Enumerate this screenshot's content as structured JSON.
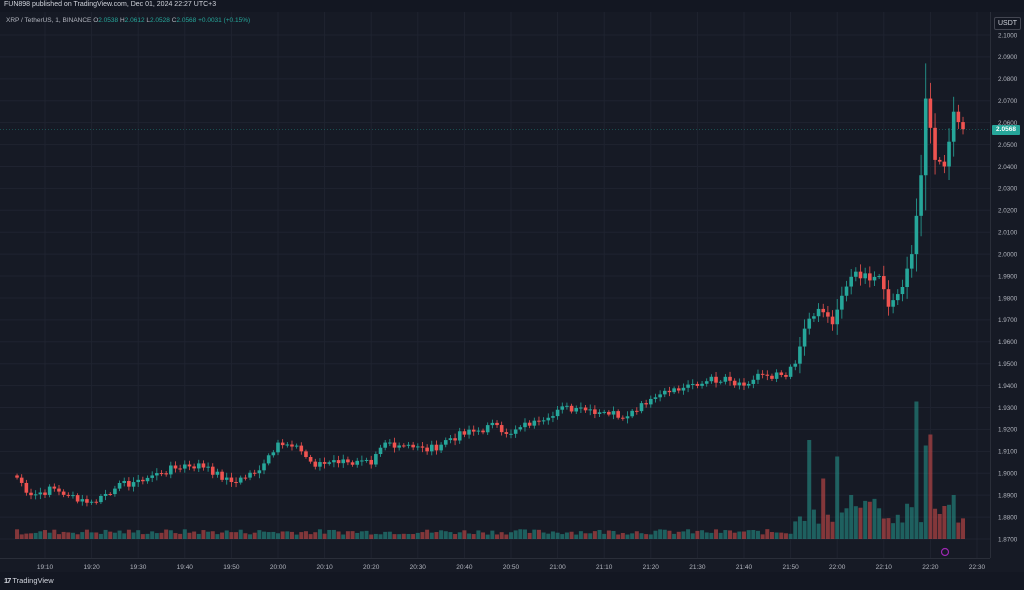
{
  "header": {
    "published": "FUN898 published on TradingView.com, Dec 01, 2024 22:27 UTC+3"
  },
  "legend": {
    "symbol": "XRP / TetherUS, 1, BINANCE",
    "o_label": "O",
    "o": "2.0538",
    "h_label": "H",
    "h": "2.0612",
    "l_label": "L",
    "l": "2.0528",
    "c_label": "C",
    "c": "2.0568",
    "change": "+0.0031 (+0.15%)"
  },
  "currency": "USDT",
  "last_price": "2.0568",
  "footer": {
    "brand": "TradingView",
    "brand_mark": "17"
  },
  "colors": {
    "up": "#26a69a",
    "down": "#ef5350",
    "background": "#161a25",
    "grid": "#1f2330"
  },
  "chart_data": {
    "type": "candlestick",
    "symbol": "XRP / TetherUS, 1, BINANCE",
    "y_ticks": [
      "2.1000",
      "2.0900",
      "2.0800",
      "2.0700",
      "2.0600",
      "2.0500",
      "2.0400",
      "2.0300",
      "2.0200",
      "2.0100",
      "2.0000",
      "1.9900",
      "1.9800",
      "1.9700",
      "1.9600",
      "1.9500",
      "1.9400",
      "1.9300",
      "1.9200",
      "1.9100",
      "1.9000",
      "1.8900",
      "1.8800",
      "1.8700"
    ],
    "ylim": [
      1.8655,
      2.1045
    ],
    "x_ticks": [
      "19:10",
      "19:20",
      "19:30",
      "19:40",
      "19:50",
      "20:00",
      "20:10",
      "20:20",
      "20:30",
      "20:40",
      "20:50",
      "21:00",
      "21:10",
      "21:20",
      "21:30",
      "21:40",
      "21:50",
      "22:00",
      "22:10",
      "22:20",
      "22:30"
    ],
    "grid": true,
    "volume_shown": true,
    "close_anchors": [
      [
        "19:04",
        1.898
      ],
      [
        "19:07",
        1.89
      ],
      [
        "19:12",
        1.893
      ],
      [
        "19:15",
        1.89
      ],
      [
        "19:20",
        1.887
      ],
      [
        "19:25",
        1.893
      ],
      [
        "19:30",
        1.897
      ],
      [
        "19:35",
        1.9
      ],
      [
        "19:40",
        1.904
      ],
      [
        "19:45",
        1.903
      ],
      [
        "19:48",
        1.897
      ],
      [
        "19:50",
        1.896
      ],
      [
        "19:55",
        1.9
      ],
      [
        "20:00",
        1.914
      ],
      [
        "20:05",
        1.91
      ],
      [
        "20:08",
        1.903
      ],
      [
        "20:12",
        1.906
      ],
      [
        "20:15",
        1.905
      ],
      [
        "20:20",
        1.904
      ],
      [
        "20:23",
        1.914
      ],
      [
        "20:28",
        1.913
      ],
      [
        "20:32",
        1.91
      ],
      [
        "20:37",
        1.916
      ],
      [
        "20:42",
        1.919
      ],
      [
        "20:47",
        1.922
      ],
      [
        "20:50",
        1.918
      ],
      [
        "20:55",
        1.924
      ],
      [
        "21:00",
        1.929
      ],
      [
        "21:05",
        1.93
      ],
      [
        "21:10",
        1.928
      ],
      [
        "21:15",
        1.926
      ],
      [
        "21:18",
        1.932
      ],
      [
        "21:22",
        1.936
      ],
      [
        "21:27",
        1.939
      ],
      [
        "21:32",
        1.942
      ],
      [
        "21:36",
        1.944
      ],
      [
        "21:40",
        1.94
      ],
      [
        "21:44",
        1.945
      ],
      [
        "21:49",
        1.944
      ],
      [
        "21:51",
        1.95
      ],
      [
        "21:53",
        1.966
      ],
      [
        "21:56",
        1.975
      ],
      [
        "21:59",
        1.968
      ],
      [
        "22:01",
        1.981
      ],
      [
        "22:04",
        1.992
      ],
      [
        "22:07",
        1.988
      ],
      [
        "22:09",
        1.99
      ],
      [
        "22:11",
        1.976
      ],
      [
        "22:14",
        1.985
      ],
      [
        "22:16",
        2.0
      ],
      [
        "22:18",
        2.036
      ],
      [
        "22:19",
        2.071
      ],
      [
        "22:21",
        2.043
      ],
      [
        "22:23",
        2.04
      ],
      [
        "22:25",
        2.065
      ],
      [
        "22:27",
        2.057
      ]
    ],
    "volume_peaks": [
      [
        "21:51",
        0.16
      ],
      [
        "21:54",
        0.9
      ],
      [
        "21:57",
        0.55
      ],
      [
        "22:00",
        0.75
      ],
      [
        "22:03",
        0.4
      ],
      [
        "22:13",
        0.22
      ],
      [
        "22:17",
        1.25
      ],
      [
        "22:19",
        0.85
      ],
      [
        "22:20",
        0.95
      ],
      [
        "22:23",
        0.3
      ],
      [
        "22:25",
        0.4
      ]
    ]
  }
}
